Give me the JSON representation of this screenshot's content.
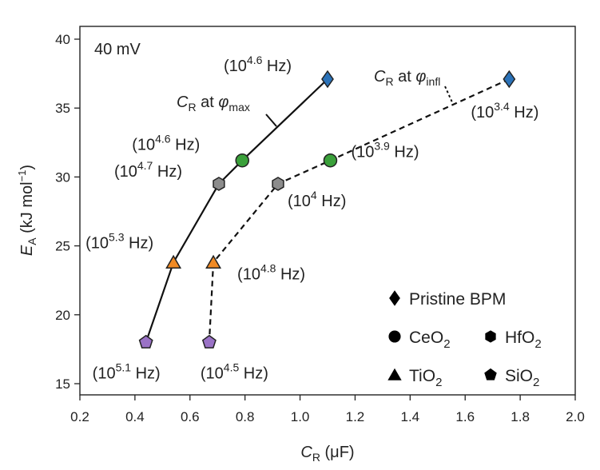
{
  "chart_data": {
    "type": "scatter",
    "annotation_topleft": "40 mV",
    "xlabel": "C_R (μF)",
    "ylabel": "E_A (kJ mol⁻¹)",
    "xlim": [
      0.2,
      2.0
    ],
    "ylim": [
      15,
      40.5
    ],
    "xticks": [
      0.2,
      0.4,
      0.6,
      0.8,
      1.0,
      1.2,
      1.4,
      1.6,
      1.8,
      2.0
    ],
    "xtick_labels": [
      "0.2",
      "0.4",
      "0.6",
      "0.8",
      "1.0",
      "1.2",
      "1.4",
      "1.6",
      "1.8",
      "2.0"
    ],
    "yticks": [
      15,
      20,
      25,
      30,
      35,
      40
    ],
    "ytick_labels": [
      "15",
      "20",
      "25",
      "30",
      "35",
      "40"
    ],
    "grid": false,
    "legend_position": "bottom-right",
    "legend": [
      {
        "marker": "diamond",
        "label": "Pristine BPM",
        "sub": ""
      },
      {
        "marker": "circle",
        "label": "CeO",
        "sub": "2"
      },
      {
        "marker": "hexagon",
        "label": "HfO",
        "sub": "2"
      },
      {
        "marker": "triangle",
        "label": "TiO",
        "sub": "2"
      },
      {
        "marker": "pentagon",
        "label": "SiO",
        "sub": "2"
      }
    ],
    "series": [
      {
        "label_main": "C",
        "label_sub": "R",
        "label_mid": " at ",
        "label_phi": "φ",
        "label_phi_sub": "max",
        "style": "solid",
        "points": [
          {
            "material": "Pristine BPM",
            "x": 1.1,
            "y": 37.1,
            "freq": "4.6"
          },
          {
            "material": "CeO2",
            "x": 0.79,
            "y": 31.2,
            "freq": "4.6"
          },
          {
            "material": "HfO2",
            "x": 0.705,
            "y": 29.5,
            "freq": "4.7"
          },
          {
            "material": "TiO2",
            "x": 0.54,
            "y": 23.8,
            "freq": "5.3"
          },
          {
            "material": "SiO2",
            "x": 0.44,
            "y": 18.0,
            "freq": "5.1"
          }
        ]
      },
      {
        "label_main": "C",
        "label_sub": "R",
        "label_mid": " at ",
        "label_phi": "φ",
        "label_phi_sub": "infl",
        "style": "dashed",
        "points": [
          {
            "material": "Pristine BPM",
            "x": 1.76,
            "y": 37.1,
            "freq": "3.4"
          },
          {
            "material": "CeO2",
            "x": 1.11,
            "y": 31.2,
            "freq": "3.9"
          },
          {
            "material": "HfO2",
            "x": 0.92,
            "y": 29.5,
            "freq": "4"
          },
          {
            "material": "TiO2",
            "x": 0.685,
            "y": 23.8,
            "freq": "4.8"
          },
          {
            "material": "SiO2",
            "x": 0.67,
            "y": 18.0,
            "freq": "4.5"
          }
        ]
      }
    ],
    "marker_colors": {
      "Pristine BPM": "#2b72b8",
      "CeO2": "#3aa03a",
      "HfO2": "#8c8c8c",
      "TiO2": "#f08a24",
      "SiO2": "#9a72c6"
    }
  }
}
